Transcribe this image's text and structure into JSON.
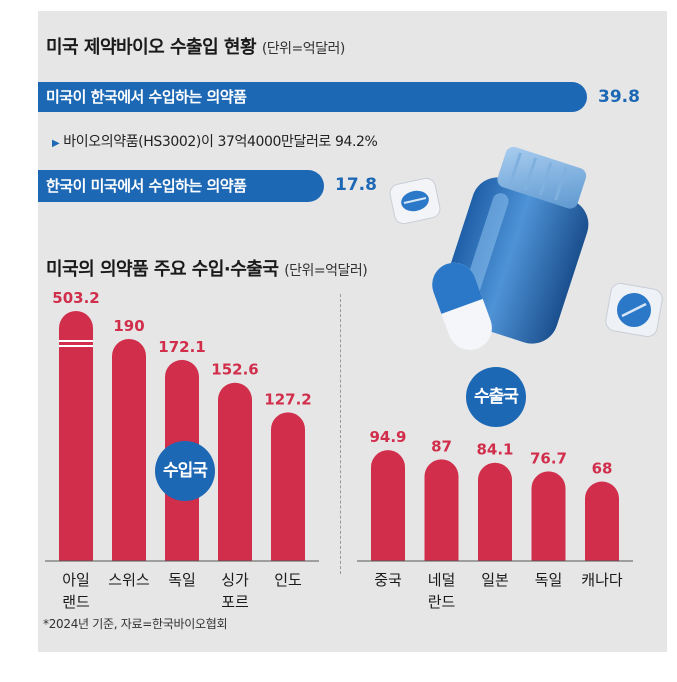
{
  "header": {
    "title": "미국 제약바이오 수출입 현황",
    "unit": "(단위=억달러)"
  },
  "trade": {
    "import_label": "미국이 한국에서 수입하는 의약품",
    "import_value": "39.8",
    "note": "바이오의약품(HS3002)이 37억4000만달러로 94.2%",
    "export_label": "한국이 미국에서 수입하는 의약품",
    "export_value": "17.8"
  },
  "section2": {
    "title": "미국의 의약품 주요 수입·수출국",
    "unit": "(단위=억달러)"
  },
  "badges": {
    "import": "수입국",
    "export": "수출국"
  },
  "source": "*2024년 기준, 자료=한국바이오협회",
  "colors": {
    "bar": "#d12e4b",
    "accent": "#1d68b5",
    "panel": "#e6e6e6"
  },
  "chart_data": [
    {
      "type": "bar",
      "name": "수입국",
      "categories": [
        "아일\n랜드",
        "스위스",
        "독일",
        "싱가\n포르",
        "인도"
      ],
      "values": [
        503.2,
        190,
        172.1,
        152.6,
        127.2
      ],
      "value_labels": [
        "503.2",
        "190",
        "172.1",
        "152.6",
        "127.2"
      ],
      "axis_break_on_first": true
    },
    {
      "type": "bar",
      "name": "수출국",
      "categories": [
        "중국",
        "네덜\n란드",
        "일본",
        "독일",
        "캐나다"
      ],
      "values": [
        94.9,
        87,
        84.1,
        76.7,
        68
      ],
      "value_labels": [
        "94.9",
        "87",
        "84.1",
        "76.7",
        "68"
      ]
    }
  ]
}
